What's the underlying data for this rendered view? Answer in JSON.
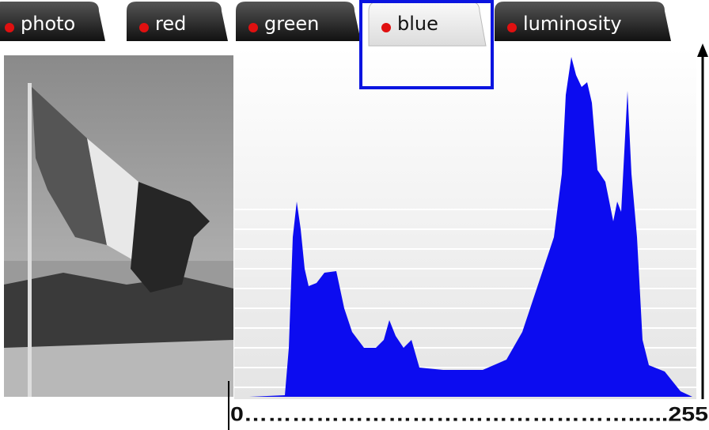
{
  "tabs": [
    "photo",
    "red",
    "green",
    "blue",
    "luminosity"
  ],
  "active_tab": "blue",
  "axis_caption": "0…………………………………………......255"
}
